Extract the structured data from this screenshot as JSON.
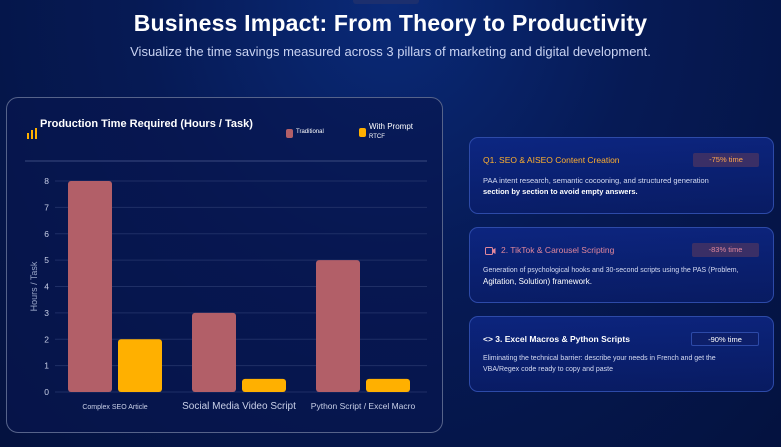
{
  "header": {
    "title": "Business Impact: From Theory to Productivity",
    "subtitle": "Visualize the time savings measured across 3 pillars of marketing and digital development."
  },
  "chart_card": {
    "legend": [
      {
        "label": "Traditional",
        "color": "#b25f68"
      },
      {
        "label": "With Prompt",
        "label_sub": "RTCF",
        "color": "#ffb000"
      }
    ]
  },
  "chart_data": {
    "type": "bar",
    "title": "Production Time Required (Hours / Task)",
    "ylabel": "Hours / Task",
    "xlabel": "",
    "categories": [
      "Complex SEO Article",
      "Social Media Video Script",
      "Python Script / Excel Macro"
    ],
    "series": [
      {
        "name": "Traditional",
        "values": [
          8,
          3,
          5
        ],
        "color": "#b25f68"
      },
      {
        "name": "With Prompt RTCF",
        "values": [
          2,
          0.5,
          0.5
        ],
        "color": "#ffb000"
      }
    ],
    "ylim": [
      0,
      8
    ],
    "yticks": [
      0,
      1,
      2,
      3,
      4,
      5,
      6,
      7,
      8
    ],
    "grid": true,
    "legend_position": "top-right"
  },
  "cards": [
    {
      "title": "Q1. SEO & AISEO Content Creation",
      "badge": "-75% time",
      "desc_lead": "PAA intent research, semantic cocooning, and structured generation",
      "desc_bold": "section by section to avoid empty answers."
    },
    {
      "title": "2. TikTok & Carousel Scripting",
      "badge": "-83% time",
      "icon": "video-icon",
      "desc_lead": "Generation of psychological hooks and 30-second scripts using the PAS (Problem,",
      "desc_tail": "Agitation, Solution) framework."
    },
    {
      "title": "<> 3. Excel Macros & Python Scripts",
      "badge": "-90% time",
      "desc_lead": "Eliminating the technical barrier: describe your needs in French and get the",
      "desc_tail": "VBA/Regex code ready to copy and paste"
    }
  ]
}
